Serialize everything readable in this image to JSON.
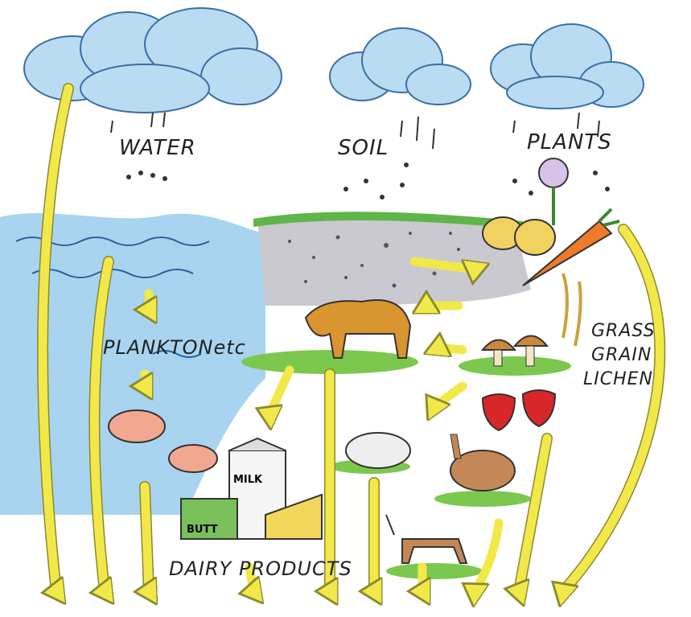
{
  "labels": {
    "water": "WATER",
    "soil": "SOIL",
    "plants": "PLANTS",
    "plankton": "PLANKTONetc",
    "grass": "GRASS",
    "grain": "GRAIN",
    "lichen": "LICHEN",
    "dairy": "DAIRY PRODUCTS",
    "milk": "MILK",
    "butter": "BUTT"
  }
}
